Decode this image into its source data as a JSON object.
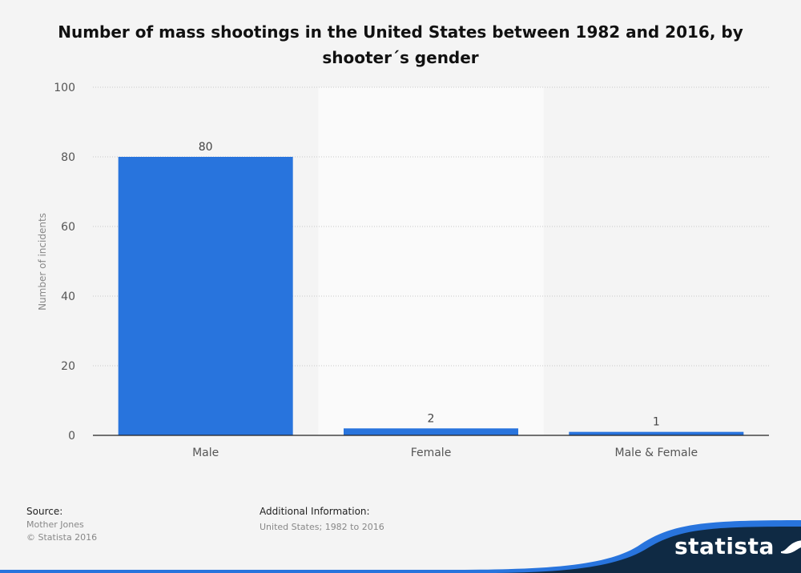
{
  "chart_data": {
    "type": "bar",
    "title": "Number of mass shootings in the United States between 1982 and 2016, by shooter´s gender",
    "categories": [
      "Male",
      "Female",
      "Male & Female"
    ],
    "values": [
      80,
      2,
      1
    ],
    "ylabel": "Number of incidents",
    "xlabel": "",
    "ylim": [
      0,
      100
    ],
    "yticks": [
      0,
      20,
      40,
      60,
      80,
      100
    ],
    "grid": true,
    "bar_color": "#2874dd",
    "highlight_band_category": "Female"
  },
  "footer": {
    "source_heading": "Source:",
    "source_lines": [
      "Mother Jones",
      "© Statista 2016"
    ],
    "info_heading": "Additional Information:",
    "info_lines": [
      "United States; 1982 to 2016"
    ]
  },
  "brand": {
    "name": "statista",
    "band_dark": "#0f2a44",
    "band_accent": "#2874dd"
  }
}
